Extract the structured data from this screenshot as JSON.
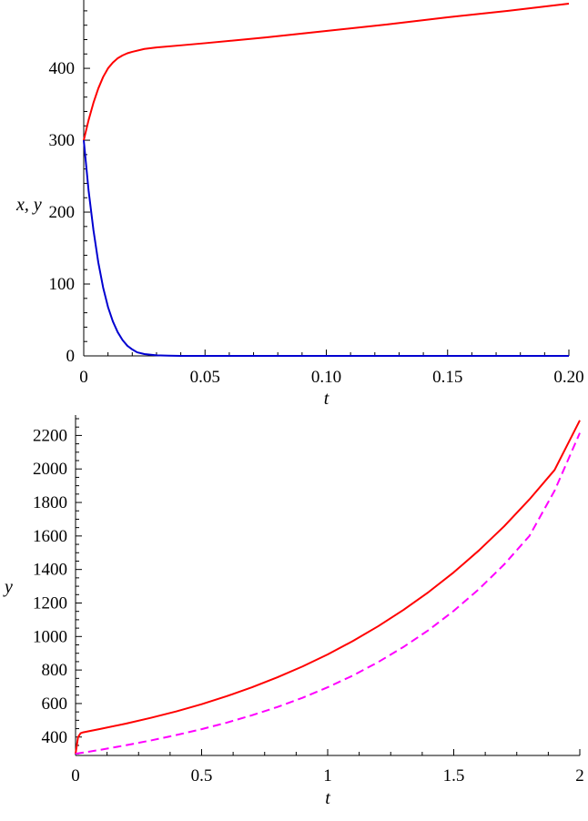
{
  "chart_data": [
    {
      "type": "line",
      "title": "",
      "xlabel": "t",
      "ylabel": "x, y",
      "xlim": [
        0,
        0.2
      ],
      "ylim": [
        0,
        490
      ],
      "grid": false,
      "x_ticks": [
        "0",
        "0.05",
        "0.10",
        "0.15",
        "0.20"
      ],
      "x_tick_values": [
        0,
        0.05,
        0.1,
        0.15,
        0.2
      ],
      "y_ticks": [
        "0",
        "100",
        "200",
        "300",
        "400"
      ],
      "y_tick_values": [
        0,
        100,
        200,
        300,
        400
      ],
      "series": [
        {
          "color": "#ff0000",
          "style": "solid",
          "x": [
            0,
            0.002,
            0.004,
            0.006,
            0.008,
            0.01,
            0.012,
            0.014,
            0.016,
            0.018,
            0.02,
            0.025,
            0.03,
            0.04,
            0.05,
            0.075,
            0.1,
            0.125,
            0.15,
            0.175,
            0.2
          ],
          "y": [
            300,
            328,
            352,
            372,
            388,
            400,
            408,
            414,
            418,
            421,
            423,
            427,
            429,
            432,
            435,
            443,
            452,
            461,
            471,
            480,
            490
          ]
        },
        {
          "color": "#0000d0",
          "style": "solid",
          "x": [
            0,
            0.002,
            0.004,
            0.006,
            0.008,
            0.01,
            0.012,
            0.014,
            0.016,
            0.018,
            0.02,
            0.022,
            0.025,
            0.03,
            0.035,
            0.04,
            0.05,
            0.1,
            0.15,
            0.2
          ],
          "y": [
            300,
            230,
            175,
            130,
            95,
            68,
            48,
            33,
            22,
            14,
            9,
            5,
            2.5,
            0.8,
            0.3,
            0,
            0,
            0,
            0,
            0
          ]
        }
      ]
    },
    {
      "type": "line",
      "title": "",
      "xlabel": "t",
      "ylabel": "y",
      "xlim": [
        0,
        2
      ],
      "ylim": [
        290,
        2300
      ],
      "grid": false,
      "x_ticks": [
        "0",
        "0.5",
        "1",
        "1.5",
        "2"
      ],
      "x_tick_values": [
        0,
        0.5,
        1,
        1.5,
        2
      ],
      "y_ticks": [
        "400",
        "600",
        "800",
        "1000",
        "1200",
        "1400",
        "1600",
        "1800",
        "2000",
        "2200"
      ],
      "y_tick_values": [
        400,
        600,
        800,
        1000,
        1200,
        1400,
        1600,
        1800,
        2000,
        2200
      ],
      "series": [
        {
          "color": "#ff0000",
          "style": "solid",
          "x": [
            0,
            0.01,
            0.02,
            0.03,
            0.05,
            0.1,
            0.2,
            0.3,
            0.4,
            0.5,
            0.6,
            0.7,
            0.8,
            0.9,
            1.0,
            1.1,
            1.2,
            1.3,
            1.4,
            1.5,
            1.6,
            1.7,
            1.8,
            1.9,
            2.0
          ],
          "y": [
            300,
            400,
            423,
            428,
            434,
            449,
            480,
            515,
            553,
            596,
            644,
            697,
            756,
            821,
            893,
            973,
            1061,
            1158,
            1265,
            1383,
            1514,
            1658,
            1818,
            1994,
            2290
          ]
        },
        {
          "color": "#ff00ff",
          "style": "dashed",
          "x": [
            0,
            0.1,
            0.2,
            0.3,
            0.4,
            0.5,
            0.6,
            0.7,
            0.8,
            0.9,
            1.0,
            1.1,
            1.2,
            1.3,
            1.4,
            1.5,
            1.6,
            1.7,
            1.8,
            1.9,
            2.0
          ],
          "y": [
            300,
            324,
            351,
            380,
            412,
            447,
            486,
            530,
            579,
            634,
            697,
            767,
            847,
            937,
            1038,
            1153,
            1283,
            1430,
            1600,
            1870,
            2215
          ]
        }
      ]
    }
  ]
}
